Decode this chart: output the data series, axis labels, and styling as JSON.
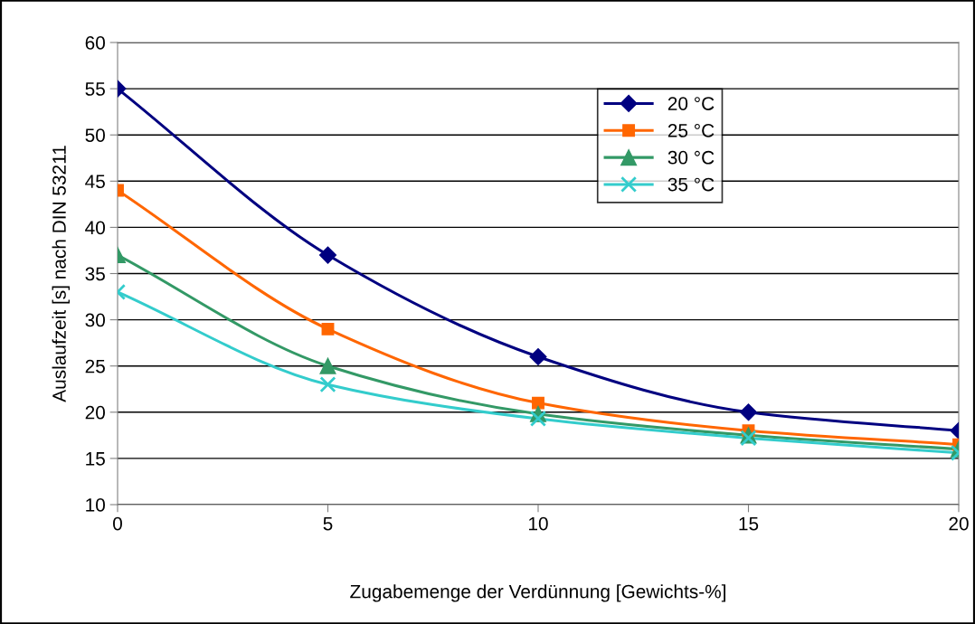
{
  "chart_data": {
    "type": "line",
    "xlabel": "Zugabemenge der Verdünnung [Gewichts-%]",
    "ylabel": "Auslaufzeit [s] nach DIN 53211",
    "x": [
      0,
      5,
      10,
      15,
      20
    ],
    "series": [
      {
        "name": "20 °C",
        "color": "#000080",
        "marker": "diamond",
        "values": [
          55,
          37,
          26,
          20,
          18
        ]
      },
      {
        "name": "25 °C",
        "color": "#ff6600",
        "marker": "square",
        "values": [
          44,
          29,
          21,
          18,
          16.5
        ]
      },
      {
        "name": "30 °C",
        "color": "#339966",
        "marker": "triangle",
        "values": [
          37,
          25,
          19.8,
          17.5,
          16
        ]
      },
      {
        "name": "35 °C",
        "color": "#33cccc",
        "marker": "cross",
        "values": [
          33,
          23,
          19.3,
          17.2,
          15.6
        ]
      }
    ],
    "xlim": [
      0,
      20
    ],
    "xticks": [
      0,
      5,
      10,
      15,
      20
    ],
    "ylim": [
      10,
      60
    ],
    "yticks": [
      10,
      15,
      20,
      25,
      30,
      35,
      40,
      45,
      50,
      55,
      60
    ],
    "grid": "y",
    "legend": "top right",
    "line_style": "solid"
  }
}
